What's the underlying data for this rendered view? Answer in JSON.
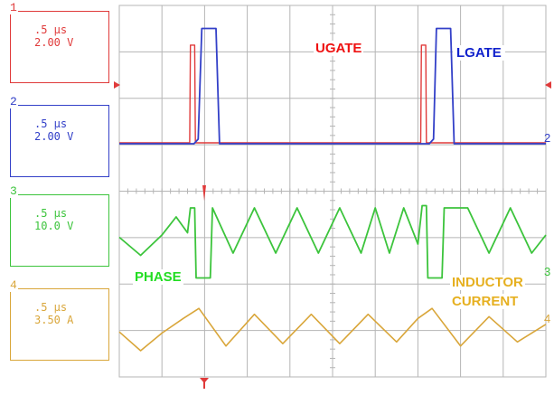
{
  "colors": {
    "ch1": "#e03a3a",
    "ch2": "#3340c8",
    "ch3": "#3cc43c",
    "ch4": "#d9a63a",
    "grid": "#b5b5b5",
    "label_red": "#ee1111",
    "label_blue": "#1122cc",
    "label_green": "#22dd22",
    "label_gold": "#e6b020"
  },
  "channels": [
    {
      "num": "1",
      "time": ".5 µs",
      "scale": "2.00 V"
    },
    {
      "num": "2",
      "time": ".5 µs",
      "scale": "2.00 V"
    },
    {
      "num": "3",
      "time": ".5 µs",
      "scale": "10.0 V"
    },
    {
      "num": "4",
      "time": ".5 µs",
      "scale": "3.50 A"
    }
  ],
  "markers": {
    "right_ch2": "2",
    "right_ch3": "3",
    "right_ch4": "4"
  },
  "chart_data": {
    "type": "line",
    "title": "",
    "grid": true,
    "divisions": {
      "x": 10,
      "y": 8
    },
    "labels": {
      "ugate": "UGATE",
      "lgate": "LGATE",
      "phase": "PHASE",
      "inductor_l1": "INDUCTOR",
      "inductor_l2": "CURRENT"
    },
    "series": [
      {
        "key": "ugate",
        "name": "UGATE",
        "x": [
          0,
          4.95,
          5.0,
          5.3,
          5.35,
          6.3,
          6.35,
          21.2,
          21.25,
          21.55,
          21.6,
          22.6,
          22.65,
          30
        ],
        "y": [
          0,
          0,
          4.6,
          4.6,
          0,
          0,
          0,
          0,
          4.6,
          4.6,
          0,
          0,
          0,
          0
        ]
      },
      {
        "key": "lgate",
        "name": "LGATE",
        "x": [
          0,
          5.25,
          5.55,
          5.8,
          6.4,
          6.8,
          7.05,
          21.8,
          22.1,
          22.3,
          22.9,
          23.3,
          23.55,
          30
        ],
        "y": [
          0,
          0,
          0.2,
          5.0,
          5.0,
          5.0,
          0,
          0,
          0.2,
          5.0,
          5.0,
          5.0,
          0,
          0
        ]
      },
      {
        "key": "phase",
        "name": "PHASE",
        "x": [
          0,
          1.5,
          3.0,
          4.0,
          4.8,
          5.0,
          5.3,
          5.4,
          6.4,
          6.55,
          8.0,
          9.5,
          11.0,
          12.5,
          14.0,
          15.5,
          17.0,
          18.0,
          19.0,
          20.0,
          21.0,
          21.3,
          21.6,
          21.7,
          22.7,
          22.85,
          24.5,
          26.0,
          27.5,
          29.0,
          30
        ],
        "y": [
          -1,
          -9,
          0,
          8,
          1,
          12,
          12,
          -19,
          -19,
          12,
          -8,
          12,
          -8,
          12,
          -8,
          12,
          -8,
          12,
          -8,
          12,
          -4,
          13,
          13,
          -19,
          -19,
          12,
          12,
          -8,
          12,
          -8,
          0
        ]
      },
      {
        "key": "current",
        "name": "INDUCTOR CURRENT",
        "x": [
          0,
          1.5,
          3.0,
          4.5,
          5.6,
          7.5,
          9.5,
          11.5,
          13.5,
          15.5,
          17.5,
          19.5,
          21.0,
          22.0,
          24.0,
          26.0,
          28.0,
          30
        ],
        "y": [
          -0.8,
          -4.0,
          -1.0,
          1.5,
          3.2,
          -3.2,
          2.2,
          -2.8,
          2.2,
          -2.8,
          2.2,
          -2.5,
          1.5,
          3.2,
          -3.2,
          1.8,
          -2.5,
          0.5
        ]
      }
    ]
  }
}
